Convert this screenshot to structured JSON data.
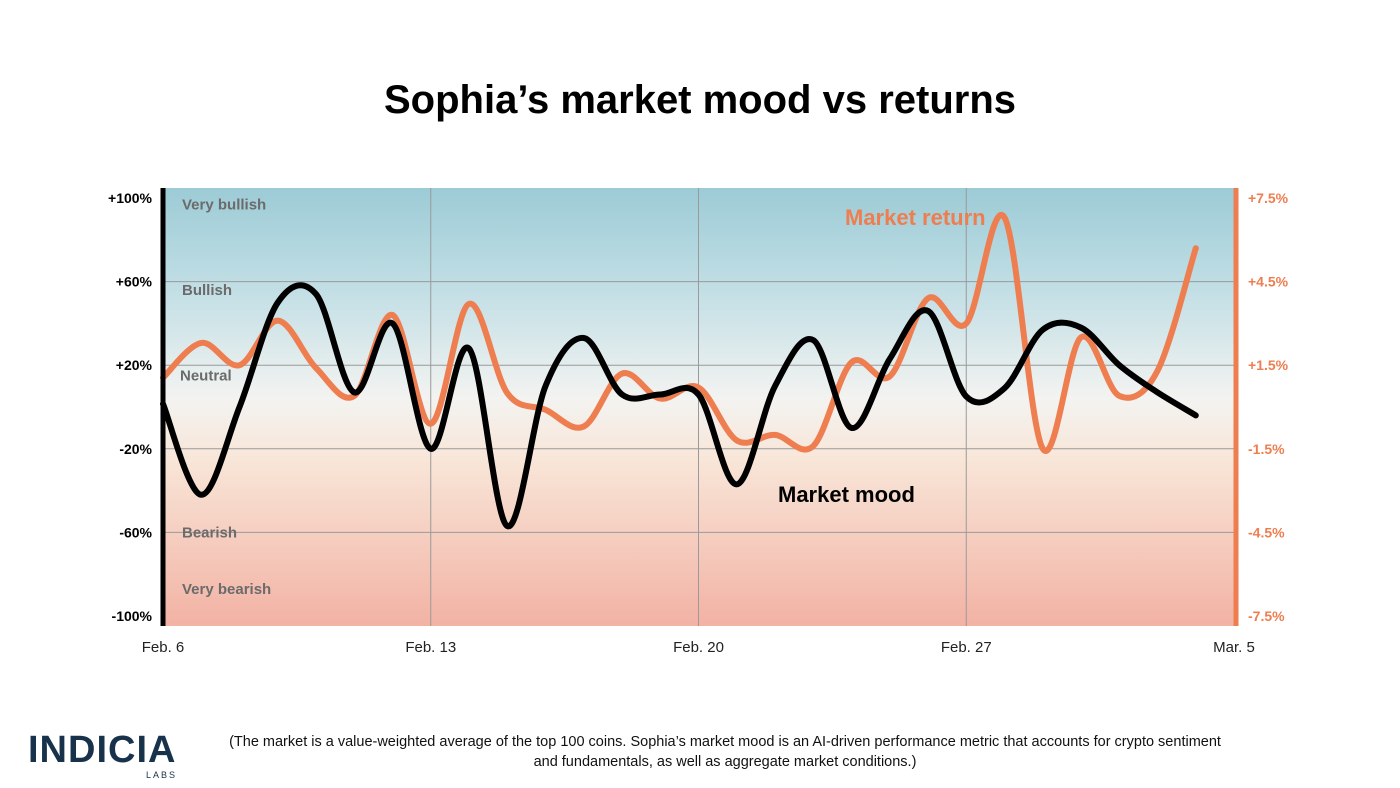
{
  "title": "Sophia’s market mood vs returns",
  "chart_data": {
    "type": "line",
    "title": "Sophia’s market mood vs returns",
    "x_tick_labels": [
      "Feb. 6",
      "Feb. 13",
      "Feb. 20",
      "Feb. 27",
      "Mar. 5"
    ],
    "x_range_days": [
      0,
      28
    ],
    "left_axis": {
      "ticks": [
        "+100%",
        "+60%",
        "+20%",
        "-20%",
        "-60%",
        "-100%"
      ],
      "ylim": [
        -100,
        100
      ]
    },
    "right_axis": {
      "ticks": [
        "+7.5%",
        "+4.5%",
        "+1.5%",
        "-1.5%",
        "-4.5%",
        "-7.5%"
      ],
      "ylim": [
        -7.5,
        7.5
      ]
    },
    "zones": [
      "Very bullish",
      "Bullish",
      "Neutral",
      "Bearish",
      "Very bearish"
    ],
    "series": [
      {
        "name": "Market mood",
        "axis": "left",
        "color": "#000000",
        "points": [
          [
            0,
            1.5
          ],
          [
            1,
            -42
          ],
          [
            2,
            0
          ],
          [
            3,
            50
          ],
          [
            4,
            54
          ],
          [
            5,
            7
          ],
          [
            6,
            40
          ],
          [
            7,
            -20
          ],
          [
            8,
            28
          ],
          [
            9,
            -57
          ],
          [
            10,
            10
          ],
          [
            11,
            33
          ],
          [
            12,
            6
          ],
          [
            13,
            6
          ],
          [
            14,
            6
          ],
          [
            15,
            -37
          ],
          [
            16,
            10
          ],
          [
            17,
            32
          ],
          [
            18,
            -10
          ],
          [
            19,
            23
          ],
          [
            20,
            46
          ],
          [
            21,
            5
          ],
          [
            22,
            9
          ],
          [
            23,
            37
          ],
          [
            24,
            38
          ],
          [
            25,
            20
          ],
          [
            26,
            7
          ],
          [
            27,
            -4
          ]
        ]
      },
      {
        "name": "Market return",
        "axis": "right",
        "color": "#ee7e50",
        "points": [
          [
            0,
            1.05
          ],
          [
            1,
            2.3
          ],
          [
            2,
            1.5
          ],
          [
            3,
            3.1
          ],
          [
            4,
            1.4
          ],
          [
            5,
            0.4
          ],
          [
            6,
            3.3
          ],
          [
            7,
            -0.6
          ],
          [
            8,
            3.7
          ],
          [
            9,
            0.5
          ],
          [
            10,
            -0.1
          ],
          [
            11,
            -0.7
          ],
          [
            12,
            1.2
          ],
          [
            13,
            0.3
          ],
          [
            14,
            0.7
          ],
          [
            15,
            -1.2
          ],
          [
            16,
            -1.0
          ],
          [
            17,
            -1.4
          ],
          [
            18,
            1.6
          ],
          [
            19,
            1.1
          ],
          [
            20,
            3.9
          ],
          [
            21,
            3.0
          ],
          [
            22,
            6.8
          ],
          [
            23,
            -1.5
          ],
          [
            24,
            2.5
          ],
          [
            25,
            0.4
          ],
          [
            26,
            1.3
          ],
          [
            27,
            5.7
          ]
        ]
      }
    ]
  },
  "footnote": "(The market is a value-weighted average of the top 100 coins. Sophia’s market mood is an AI-driven performance metric that accounts for crypto sentiment and fundamentals, as well as aggregate market conditions.)",
  "logo": {
    "main": "INDICIA",
    "sub": "LABS"
  },
  "colors": {
    "accent": "#ee7e50",
    "mood": "#000000",
    "top_band": "#9ccbd6",
    "bottom_band": "#f2b2a4"
  }
}
